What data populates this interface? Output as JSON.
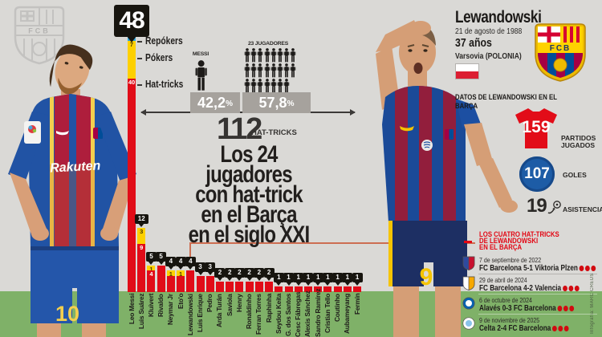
{
  "meta": {
    "credit": "Infografía: MARC CREUS"
  },
  "colors": {
    "repoker": "#2ba8de",
    "poker": "#fdd000",
    "hattrick": "#e10c18",
    "tag_black": "#17150f",
    "grass": "#7fb168",
    "background": "#dad9d6",
    "accent_red": "#e30613",
    "goals_blue": "#1d5ca6",
    "pct_gray": "#a6a29d",
    "connector": "#cd6e52"
  },
  "chart_data": {
    "type": "bar",
    "title_lines": [
      "Los 24 jugadores",
      "con hat-trick",
      "en el Barça",
      "en el siglo XXI"
    ],
    "total": {
      "value": "112",
      "label": "HAT-TRICKS"
    },
    "legend": [
      {
        "id": "repoker",
        "label": "Repókers"
      },
      {
        "id": "poker",
        "label": "Pókers"
      },
      {
        "id": "hattrick",
        "label": "Hat-tricks"
      }
    ],
    "comparison": {
      "messi": {
        "label": "MESSI",
        "pct": "42,2",
        "unit": "%"
      },
      "others": {
        "label": "23 JUGADORES",
        "count": 23,
        "rows": [
          8,
          8,
          7
        ],
        "pct": "57,8",
        "unit": "%"
      }
    },
    "categories": [
      "Leo Messi",
      "Luis Suárez",
      "Kluivert",
      "Rivaldo",
      "Neymar Jr",
      "Eto'o",
      "Lewandowski",
      "Luis Enrique",
      "Pedro",
      "Arda Turán",
      "Saviola",
      "Henry",
      "Ronaldinho",
      "Ferran Torres",
      "Raphinha",
      "Seydou Keita",
      "G. dos Santos",
      "Cesc Fábregas",
      "Alexis Sánchez",
      "Sandro Ramírez",
      "Cristian Tello",
      "Coutinho",
      "Aubameyang",
      "Fermín"
    ],
    "totals": [
      48,
      12,
      5,
      5,
      4,
      4,
      4,
      3,
      3,
      2,
      2,
      2,
      2,
      2,
      2,
      1,
      1,
      1,
      1,
      1,
      1,
      1,
      1,
      1
    ],
    "series": [
      {
        "name": "Repókers",
        "key": "repoker",
        "values": [
          1,
          0,
          0,
          0,
          0,
          0,
          0,
          0,
          0,
          0,
          0,
          0,
          0,
          0,
          0,
          0,
          0,
          0,
          0,
          0,
          0,
          0,
          0,
          0
        ]
      },
      {
        "name": "Pókers",
        "key": "poker",
        "values": [
          7,
          3,
          1,
          0,
          1,
          1,
          0,
          0,
          0,
          0,
          0,
          0,
          0,
          0,
          0,
          0,
          0,
          0,
          0,
          0,
          0,
          0,
          0,
          0
        ]
      },
      {
        "name": "Hat-tricks",
        "key": "hattrick",
        "values": [
          40,
          9,
          4,
          5,
          3,
          3,
          4,
          3,
          3,
          2,
          2,
          2,
          2,
          2,
          2,
          1,
          1,
          1,
          1,
          1,
          1,
          1,
          1,
          1
        ]
      }
    ],
    "segment_label_players": {
      "repoker": [
        0
      ],
      "poker": [
        0,
        1,
        2,
        4,
        5
      ],
      "hattrick": [
        0,
        1,
        2
      ]
    },
    "ylim": [
      0,
      48
    ],
    "grid": false
  },
  "figures": {
    "messi": {
      "jersey_sponsor": "Rakuten",
      "shorts_number": "10"
    },
    "lewandowski": {
      "shorts_number": "9"
    }
  },
  "crest": {
    "text": "FCB"
  },
  "watermark_crest": {
    "text": "FCB"
  },
  "lewandowski_panel": {
    "name": "Lewandowski",
    "birth": "21 de agosto de 1988",
    "age": "37 años",
    "birthplace": "Varsovia (POLONIA)",
    "section_title": "DATOS DE LEWANDOWSKI EN EL BARÇA",
    "stats": [
      {
        "value": "159",
        "label": "PARTIDOS JUGADOS",
        "icon": "jersey-icon"
      },
      {
        "value": "107",
        "label": "GOLES",
        "icon": "ball-icon"
      },
      {
        "value": "19",
        "label": "ASISTENCIAS",
        "icon": "assist-icon"
      }
    ],
    "hattricks": {
      "title_lines": [
        "LOS CUATRO HAT-TRICKS",
        "DE LEWANDOWSKI",
        "EN EL BARÇA"
      ],
      "matches": [
        {
          "date": "7 de septiembre de 2022",
          "match": "FC Barcelona 5-1 Viktoria Plzen",
          "goals": 3,
          "badge_shape": "shield",
          "badge_colors": [
            "#2e4a9e",
            "#c8102e"
          ]
        },
        {
          "date": "29 de abril de 2024",
          "match": "FC Barcelona 4-2 Valencia",
          "goals": 3,
          "badge_shape": "shield",
          "badge_colors": [
            "#ffffff",
            "#f7a800"
          ]
        },
        {
          "date": "6 de octubre de 2024",
          "match": "Alavés 0-3 FC Barcelona",
          "goals": 3,
          "badge_shape": "circle",
          "badge_colors": [
            "#0761af",
            "#ffffff"
          ]
        },
        {
          "date": "9 de noviembre de 2025",
          "match": "Celta 2-4 FC Barcelona",
          "goals": 3,
          "badge_shape": "circle",
          "badge_colors": [
            "#ffffff",
            "#8ac3ea"
          ]
        }
      ]
    }
  }
}
